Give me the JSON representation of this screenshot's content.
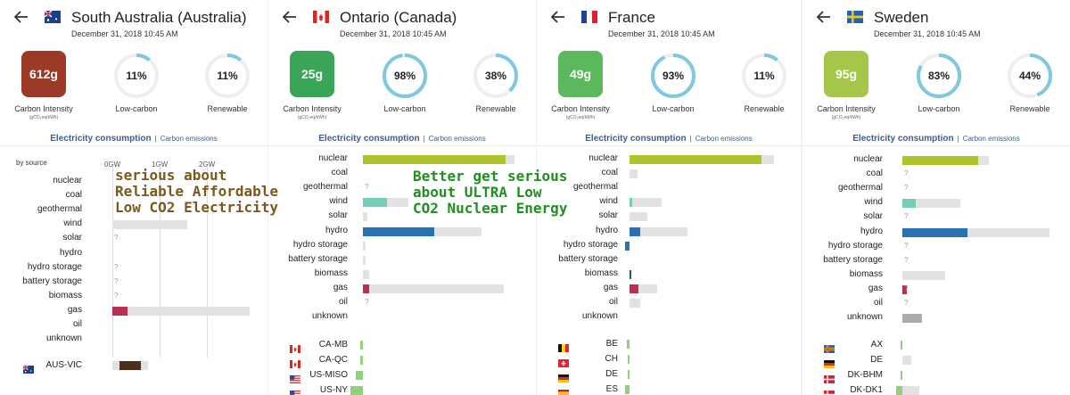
{
  "colors": {
    "ci_612": "#9b3a26",
    "ci_25": "#3aa556",
    "ci_49": "#5cb85c",
    "ci_95": "#a6c64a",
    "gauge_ring": "#7fc8e0",
    "gauge_track": "#eeeeee",
    "nuclear": "#aec32c",
    "wind": "#74cdb9",
    "hydro": "#2772b2",
    "gas": "#bb2f51",
    "unknown": "#acacac",
    "import": "#8ed37a",
    "tab_blue": "#3b5f90",
    "overlay_gold": "#7a5a1c",
    "overlay_green": "#1f8f1f"
  },
  "overlays": {
    "first": [
      "serious about",
      "Reliable Affordable",
      "Low CO2 Electricity"
    ],
    "second": [
      "Better get serious",
      "about ULTRA Low",
      "CO2 Nuclear Energy"
    ]
  },
  "panels": [
    {
      "zone": "South Australia (Australia)",
      "flag_icon": "flag-australia-icon",
      "timestamp": "December 31, 2018 10:45 AM",
      "carbon_intensity": "612g",
      "ci_label": "Carbon Intensity",
      "ci_unit": "(gCO₂eq/kWh)",
      "low_carbon": "11%",
      "low_carbon_pct": 11,
      "low_carbon_label": "Low-carbon",
      "renewable": "11%",
      "renewable_pct": 11,
      "renewable_label": "Renewable",
      "tab_active": "Electricity consumption",
      "tab_sep": "|",
      "tab_inactive": "Carbon emissions",
      "by_source": "by source",
      "ticks": [
        "0GW",
        "1GW",
        "2GW"
      ],
      "sources": [
        {
          "name": "nuclear",
          "value": 0,
          "capacity": 0
        },
        {
          "name": "coal",
          "value": 0,
          "capacity": 0
        },
        {
          "name": "geothermal",
          "value": 0,
          "capacity": 0
        },
        {
          "name": "wind",
          "value": 0,
          "capacity": 1.58
        },
        {
          "name": "solar",
          "value": null,
          "capacity": 0,
          "q": "?"
        },
        {
          "name": "hydro",
          "value": 0,
          "capacity": 0
        },
        {
          "name": "hydro storage",
          "value": null,
          "capacity": 0,
          "q": "?"
        },
        {
          "name": "battery storage",
          "value": null,
          "capacity": 0,
          "q": "?"
        },
        {
          "name": "biomass",
          "value": null,
          "capacity": 0,
          "q": "?"
        },
        {
          "name": "gas",
          "value": 0.33,
          "capacity": 2.9
        },
        {
          "name": "oil",
          "value": 0,
          "capacity": 0
        },
        {
          "name": "unknown",
          "value": 0,
          "capacity": 0
        }
      ],
      "exchanges": [
        {
          "name": "AUS-VIC",
          "flag": "flag-australia-icon",
          "value": 0.45,
          "capacity": 0.75
        }
      ]
    },
    {
      "zone": "Ontario (Canada)",
      "flag_icon": "flag-canada-icon",
      "timestamp": "December 31, 2018 10:45 AM",
      "carbon_intensity": "25g",
      "ci_label": "Carbon Intensity",
      "ci_unit": "(gCO₂eq/kWh)",
      "low_carbon": "98%",
      "low_carbon_pct": 98,
      "low_carbon_label": "Low-carbon",
      "renewable": "38%",
      "renewable_pct": 38,
      "renewable_label": "Renewable",
      "tab_active": "Electricity consumption",
      "tab_sep": "|",
      "tab_inactive": "Carbon emissions",
      "ticks": [],
      "sources": [
        {
          "name": "nuclear",
          "value": 0.94,
          "capacity": 1.0
        },
        {
          "name": "coal",
          "value": 0,
          "capacity": 0
        },
        {
          "name": "geothermal",
          "value": null,
          "capacity": 0,
          "q": "?"
        },
        {
          "name": "wind",
          "value": 0.16,
          "capacity": 0.3
        },
        {
          "name": "solar",
          "value": 0,
          "capacity": 0.03
        },
        {
          "name": "hydro",
          "value": 0.47,
          "capacity": 0.78
        },
        {
          "name": "hydro storage",
          "value": 0,
          "capacity": 0.02
        },
        {
          "name": "battery storage",
          "value": 0,
          "capacity": 0.02
        },
        {
          "name": "biomass",
          "value": 0,
          "capacity": 0.04
        },
        {
          "name": "gas",
          "value": 0.04,
          "capacity": 0.93
        },
        {
          "name": "oil",
          "value": null,
          "capacity": 0,
          "q": "?"
        },
        {
          "name": "unknown",
          "value": 0,
          "capacity": 0
        }
      ],
      "exchanges": [
        {
          "name": "CA-MB",
          "flag": "flag-canada-icon",
          "value": 0.02,
          "capacity": 0
        },
        {
          "name": "CA-QC",
          "flag": "flag-canada-icon",
          "value": 0.02,
          "capacity": 0
        },
        {
          "name": "US-MISO",
          "flag": "flag-usa-icon",
          "value": 0.05,
          "capacity": 0
        },
        {
          "name": "US-NY",
          "flag": "flag-usa-icon",
          "value": 0.08,
          "capacity": 0
        }
      ]
    },
    {
      "zone": "France",
      "flag_icon": "flag-france-icon",
      "timestamp": "December 31, 2018 10:45 AM",
      "carbon_intensity": "49g",
      "ci_label": "Carbon Intensity",
      "ci_unit": "(gCO₂eq/kWh)",
      "low_carbon": "93%",
      "low_carbon_pct": 93,
      "low_carbon_label": "Low-carbon",
      "renewable": "11%",
      "renewable_pct": 11,
      "renewable_label": "Renewable",
      "tab_active": "Electricity consumption",
      "tab_sep": "|",
      "tab_inactive": "Carbon emissions",
      "ticks": [],
      "sources": [
        {
          "name": "nuclear",
          "value": 0.87,
          "capacity": 0.95
        },
        {
          "name": "coal",
          "value": 0,
          "capacity": 0.05
        },
        {
          "name": "geothermal",
          "value": 0,
          "capacity": 0
        },
        {
          "name": "wind",
          "value": 0.02,
          "capacity": 0.21
        },
        {
          "name": "solar",
          "value": 0,
          "capacity": 0.12
        },
        {
          "name": "hydro",
          "value": 0.07,
          "capacity": 0.38
        },
        {
          "name": "hydro storage",
          "value": -0.03,
          "capacity": 0
        },
        {
          "name": "battery storage",
          "value": 0,
          "capacity": 0
        },
        {
          "name": "biomass",
          "value": 0.01,
          "capacity": 0
        },
        {
          "name": "gas",
          "value": 0.06,
          "capacity": 0.18
        },
        {
          "name": "oil",
          "value": 0,
          "capacity": 0.07
        },
        {
          "name": "unknown",
          "value": 0,
          "capacity": 0
        }
      ],
      "exchanges": [
        {
          "name": "BE",
          "flag": "flag-belgium-icon",
          "value": 0.02,
          "capacity": 0
        },
        {
          "name": "CH",
          "flag": "flag-switzerland-icon",
          "value": 0.01,
          "capacity": 0
        },
        {
          "name": "DE",
          "flag": "flag-germany-icon",
          "value": 0.01,
          "capacity": 0
        },
        {
          "name": "ES",
          "flag": "flag-spain-icon",
          "value": 0.03,
          "capacity": 0
        }
      ]
    },
    {
      "zone": "Sweden",
      "flag_icon": "flag-sweden-icon",
      "timestamp": "December 31, 2018 10:45 AM",
      "carbon_intensity": "95g",
      "ci_label": "Carbon Intensity",
      "ci_unit": "(gCO₂eq/kWh)",
      "low_carbon": "83%",
      "low_carbon_pct": 83,
      "low_carbon_label": "Low-carbon",
      "renewable": "44%",
      "renewable_pct": 44,
      "renewable_label": "Renewable",
      "tab_active": "Electricity consumption",
      "tab_sep": "|",
      "tab_inactive": "Carbon emissions",
      "ticks": [],
      "sources": [
        {
          "name": "nuclear",
          "value": 0.5,
          "capacity": 0.57
        },
        {
          "name": "coal",
          "value": null,
          "capacity": 0,
          "q": "?"
        },
        {
          "name": "geothermal",
          "value": null,
          "capacity": 0,
          "q": "?"
        },
        {
          "name": "wind",
          "value": 0.09,
          "capacity": 0.38
        },
        {
          "name": "solar",
          "value": null,
          "capacity": 0,
          "q": "?"
        },
        {
          "name": "hydro",
          "value": 0.43,
          "capacity": 0.97
        },
        {
          "name": "hydro storage",
          "value": null,
          "capacity": 0,
          "q": "?"
        },
        {
          "name": "battery storage",
          "value": null,
          "capacity": 0,
          "q": "?"
        },
        {
          "name": "biomass",
          "value": 0,
          "capacity": 0.28
        },
        {
          "name": "gas",
          "value": 0.03,
          "capacity": 0.03,
          "q": "?"
        },
        {
          "name": "oil",
          "value": null,
          "capacity": 0,
          "q": "?"
        },
        {
          "name": "unknown",
          "value": 0.13,
          "capacity": 0
        }
      ],
      "exchanges": [
        {
          "name": "AX",
          "flag": "flag-aland-icon",
          "value": 0.01,
          "capacity": 0
        },
        {
          "name": "DE",
          "flag": "flag-germany-icon",
          "value": 0,
          "capacity": 0.06
        },
        {
          "name": "DK-BHM",
          "flag": "flag-denmark-icon",
          "value": 0.01,
          "capacity": 0
        },
        {
          "name": "DK-DK1",
          "flag": "flag-denmark-icon",
          "value": 0.04,
          "capacity": 0.07
        }
      ]
    }
  ]
}
